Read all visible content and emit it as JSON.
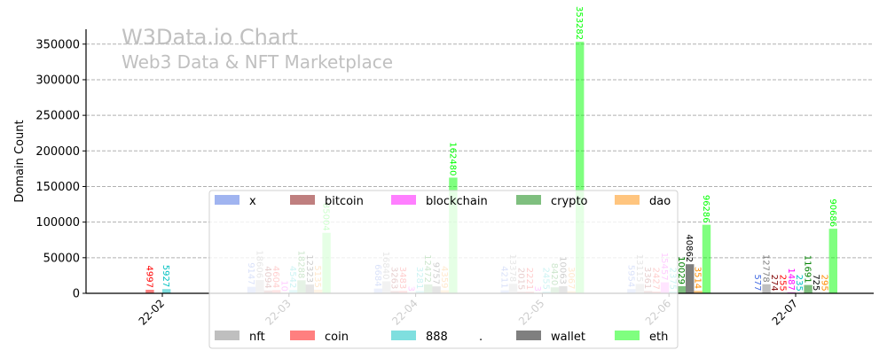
{
  "chart_data": {
    "type": "bar",
    "watermark_title": "W3Data.io Chart",
    "watermark_subtitle": "Web3 Data & NFT Marketplace",
    "xlabel": "",
    "ylabel": "Domain Count",
    "ylim": [
      0,
      370900
    ],
    "yticks": [
      0,
      50000,
      100000,
      150000,
      200000,
      250000,
      300000,
      350000
    ],
    "ytick_labels": [
      "0",
      "50000",
      "100000",
      "150000",
      "200000",
      "250000",
      "300000",
      "350000"
    ],
    "grid": "y dashed",
    "categories": [
      "22-02",
      "22-03",
      "22-04",
      "22-05",
      "22-06",
      "22-07"
    ],
    "series": [
      {
        "name": "x",
        "color": "#4169e1",
        "values": [
          0,
          9147,
          6684,
          4211,
          5954,
          577
        ]
      },
      {
        "name": "nft",
        "color": "#808080",
        "values": [
          0,
          18606,
          16840,
          13378,
          13115,
          12778
        ]
      },
      {
        "name": "bitcoin",
        "color": "#800000",
        "values": [
          0,
          4094,
          3263,
          2015,
          3361,
          274
        ]
      },
      {
        "name": "coin",
        "color": "#ff0000",
        "values": [
          4997,
          4604,
          3483,
          2221,
          2427,
          255
        ]
      },
      {
        "name": "blockchain",
        "color": "#ff00ff",
        "values": [
          0,
          10,
          3,
          3,
          15457,
          1487
        ]
      },
      {
        "name": "888",
        "color": "#00c0c0",
        "values": [
          5927,
          4542,
          3281,
          2455,
          2375,
          235
        ]
      },
      {
        "name": "crypto",
        "color": "#008000",
        "values": [
          0,
          18288,
          12472,
          8420,
          10029,
          11691
        ]
      },
      {
        "name": "wallet",
        "color": "#000000",
        "values": [
          0,
          12323,
          9757,
          10063,
          40862,
          725
        ]
      },
      {
        "name": "dao",
        "color": "#ff8c00",
        "values": [
          0,
          5135,
          4359,
          3067,
          3514,
          295
        ]
      },
      {
        "name": "eth",
        "color": "#00ff00",
        "values": [
          0,
          85004,
          162480,
          353282,
          96286,
          90686
        ]
      }
    ],
    "legend": {
      "placement": "lower-center",
      "row1": [
        "x",
        "bitcoin",
        "blockchain",
        "crypto",
        "dao"
      ],
      "row2": [
        "nft",
        "coin",
        "888",
        ".",
        "wallet",
        "eth"
      ]
    }
  }
}
